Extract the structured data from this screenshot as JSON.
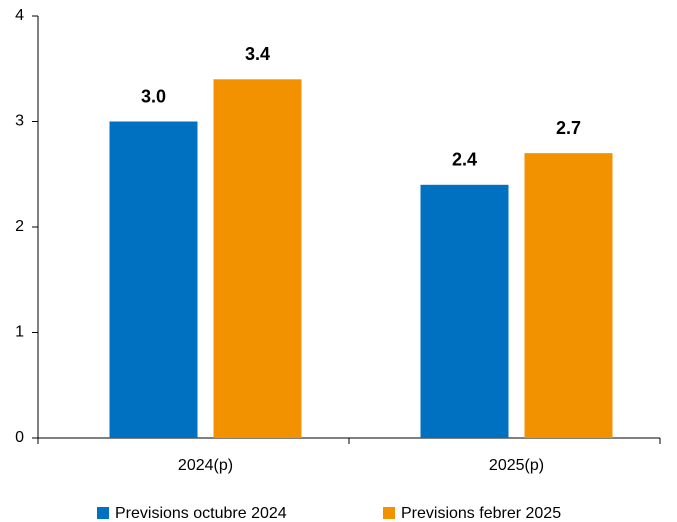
{
  "chart_data": {
    "type": "bar",
    "categories": [
      "2024(p)",
      "2025(p)"
    ],
    "series": [
      {
        "name": "Previsions octubre 2024",
        "color": "#0070c0",
        "values": [
          3.0,
          2.4
        ],
        "value_labels": [
          "3.0",
          "2.4"
        ]
      },
      {
        "name": "Previsions febrer 2025",
        "color": "#f39200",
        "values": [
          3.4,
          2.7
        ],
        "value_labels": [
          "3.4",
          "2.7"
        ]
      }
    ],
    "ylim": [
      0,
      4
    ],
    "yticks": [
      0,
      1,
      2,
      3,
      4
    ],
    "grid": false,
    "legend": "bottom"
  }
}
